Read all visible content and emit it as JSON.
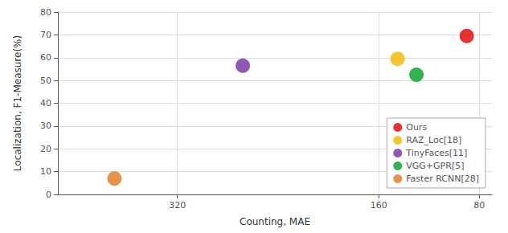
{
  "chart_data": {
    "type": "scatter",
    "xlabel": "Counting, MAE",
    "ylabel": "Localization, F1-Measure(%)",
    "series": [
      {
        "name": "Ours",
        "color": "#dd0000",
        "x": [
          90
        ],
        "values": [
          69.5
        ]
      },
      {
        "name": "RAZ_Loc[18]",
        "color": "#f0b800",
        "x": [
          145
        ],
        "values": [
          59.5
        ]
      },
      {
        "name": "TinyFaces[11]",
        "color": "#7030a0",
        "x": [
          268
        ],
        "values": [
          56.5
        ]
      },
      {
        "name": "VGG+GPR[5]",
        "color": "#00a020",
        "x": [
          130
        ],
        "values": [
          52.5
        ]
      },
      {
        "name": "Faster RCNN[28]",
        "color": "#e07820",
        "x": [
          370
        ],
        "values": [
          7.0
        ]
      }
    ],
    "xlim": [
      415,
      70
    ],
    "ylim": [
      0,
      80
    ],
    "xticks": [
      320,
      160,
      80
    ],
    "yticks": [
      0,
      10,
      20,
      30,
      40,
      50,
      60,
      70,
      80
    ],
    "grid": true,
    "legend": "lower right"
  }
}
